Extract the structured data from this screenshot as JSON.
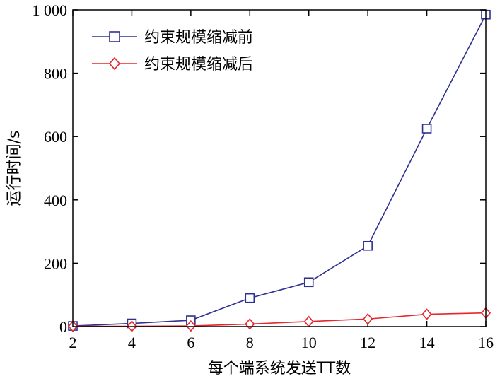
{
  "chart_data": {
    "type": "line",
    "xlabel": "每个端系统发送TT数",
    "ylabel": "运行时间/s",
    "x": [
      2,
      4,
      6,
      8,
      10,
      12,
      14,
      16
    ],
    "xlim": [
      2,
      16
    ],
    "ylim": [
      0,
      1000
    ],
    "xticks": [
      2,
      4,
      6,
      8,
      10,
      12,
      14,
      16
    ],
    "yticks": [
      0,
      200,
      400,
      600,
      800,
      1000
    ],
    "ytick_labels": [
      "0",
      "200",
      "400",
      "600",
      "800",
      "1 000"
    ],
    "grid": false,
    "legend_position": "top-left",
    "series": [
      {
        "name": "约束规模缩减前",
        "marker": "square",
        "color": "#2e3192",
        "values": [
          2,
          10,
          20,
          90,
          140,
          255,
          625,
          985
        ]
      },
      {
        "name": "约束规模缩减后",
        "marker": "diamond",
        "color": "#e8262b",
        "values": [
          1,
          1,
          2,
          8,
          16,
          24,
          39,
          43
        ]
      }
    ]
  }
}
